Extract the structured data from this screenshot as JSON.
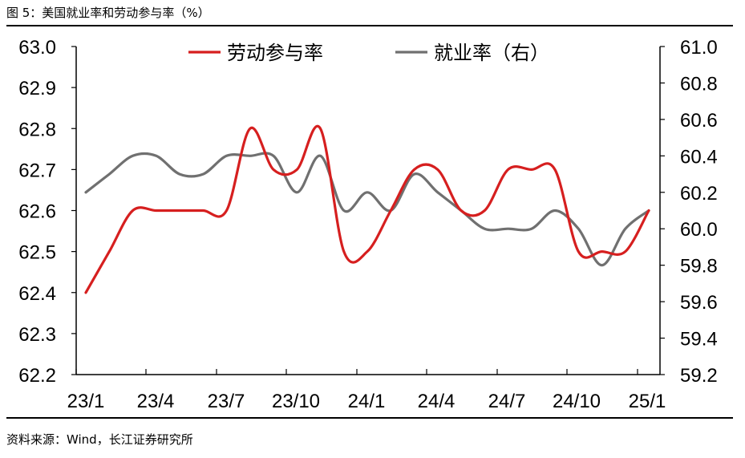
{
  "figure": {
    "title": "图 5：美国就业率和劳动参与率（%）",
    "source": "资料来源：Wind，长江证券研究所"
  },
  "chart_data": {
    "type": "line",
    "categories": [
      "23/1",
      "23/2",
      "23/3",
      "23/4",
      "23/5",
      "23/6",
      "23/7",
      "23/8",
      "23/9",
      "23/10",
      "23/11",
      "23/12",
      "24/1",
      "24/2",
      "24/3",
      "24/4",
      "24/5",
      "24/6",
      "24/7",
      "24/8",
      "24/9",
      "24/10",
      "24/11",
      "24/12",
      "25/1"
    ],
    "x_tick_labels": [
      "23/1",
      "23/4",
      "23/7",
      "23/10",
      "24/1",
      "24/4",
      "24/7",
      "24/10",
      "25/1"
    ],
    "series": [
      {
        "name": "劳动参与率",
        "axis": "left",
        "color": "#d61f1f",
        "values": [
          62.4,
          62.5,
          62.6,
          62.6,
          62.6,
          62.6,
          62.6,
          62.8,
          62.7,
          62.7,
          62.8,
          62.5,
          62.5,
          62.6,
          62.7,
          62.7,
          62.6,
          62.6,
          62.7,
          62.7,
          62.7,
          62.5,
          62.5,
          62.5,
          62.6
        ]
      },
      {
        "name": "就业率（右）",
        "axis": "right",
        "color": "#707070",
        "values": [
          60.2,
          60.3,
          60.4,
          60.4,
          60.3,
          60.3,
          60.4,
          60.4,
          60.4,
          60.2,
          60.4,
          60.1,
          60.2,
          60.1,
          60.3,
          60.2,
          60.1,
          60.0,
          60.0,
          60.0,
          60.1,
          60.0,
          59.8,
          60.0,
          60.1
        ]
      }
    ],
    "y_left": {
      "ylim": [
        62.2,
        63.0
      ],
      "ticks": [
        "62.2",
        "62.3",
        "62.4",
        "62.5",
        "62.6",
        "62.7",
        "62.8",
        "62.9",
        "63.0"
      ]
    },
    "y_right": {
      "ylim": [
        59.2,
        61.0
      ],
      "ticks": [
        "59.2",
        "59.4",
        "59.6",
        "59.8",
        "60.0",
        "60.2",
        "60.4",
        "60.6",
        "60.8",
        "61.0"
      ]
    },
    "legend": {
      "placement": "top-center"
    },
    "grid": false
  }
}
